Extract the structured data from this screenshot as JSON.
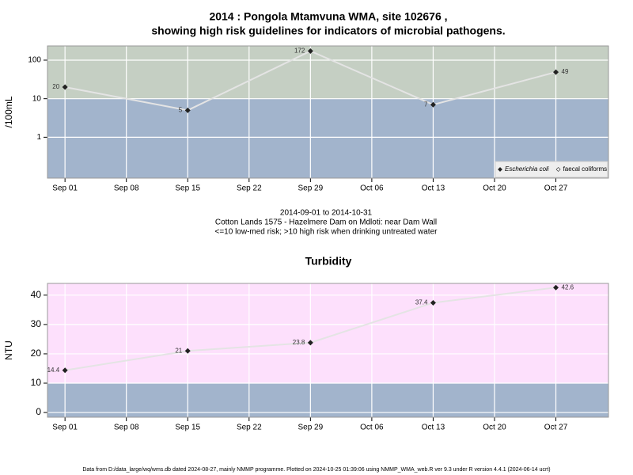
{
  "chart_data": [
    {
      "type": "line",
      "title": [
        "2014 : Pongola Mtamvuna WMA, site 102676 ,",
        "showing high risk guidelines for indicators of microbial pathogens."
      ],
      "y_label": "/100mL",
      "x": [
        "Sep 01",
        "Sep 15",
        "Sep 29",
        "Oct 13",
        "Oct 27"
      ],
      "series": [
        {
          "name": "Escherichia coli",
          "color": "#222222",
          "values": [
            20,
            5,
            172,
            7,
            49
          ]
        },
        {
          "name": "faecal coliforms",
          "color": "#222222",
          "values": [
            null,
            null,
            null,
            null,
            null
          ]
        }
      ],
      "xlim": [
        "Aug 30",
        "Nov 02"
      ],
      "xticks": [
        "Sep 01",
        "Sep 08",
        "Sep 15",
        "Sep 22",
        "Sep 29",
        "Oct 06",
        "Oct 13",
        "Oct 20",
        "Oct 27"
      ],
      "ylim": [
        0.087,
        234
      ],
      "yticks": [
        1,
        10,
        100
      ],
      "log_scale": true,
      "grid": true,
      "threshold": 10,
      "band_colors": {
        "below": "#a2b4cc",
        "above": "#c5cfc3"
      },
      "line_color": "#e4e4e4",
      "legend": "bottom right",
      "notes": [
        "2014-09-01 to 2014-10-31",
        "Cotton Lands 1575 - Hazelmere Dam on Mdloti: near Dam Wall",
        "<=10 low-med risk; >10 high risk when drinking untreated water"
      ]
    },
    {
      "type": "line",
      "title": [
        "Turbidity"
      ],
      "y_label": "NTU",
      "x": [
        "Sep 01",
        "Sep 15",
        "Sep 29",
        "Oct 13",
        "Oct 27"
      ],
      "series": [
        {
          "color": "#222222",
          "values": [
            14.4,
            21,
            23.8,
            37.4,
            42.6
          ]
        }
      ],
      "xlim": [
        "Aug 30",
        "Nov 02"
      ],
      "xticks": [
        "Sep 01",
        "Sep 08",
        "Sep 15",
        "Sep 22",
        "Sep 29",
        "Oct 06",
        "Oct 13",
        "Oct 20",
        "Oct 27"
      ],
      "ylim": [
        -1.6,
        44
      ],
      "yticks": [
        0,
        10,
        20,
        30,
        40
      ],
      "log_scale": false,
      "grid": true,
      "threshold": 10,
      "band_colors": {
        "below": "#a2b4cc",
        "above": "#fde0fc"
      },
      "line_color": "#e4e4e4"
    }
  ],
  "footer": "Data from D:/data_large/wq/wms.db dated 2024-08-27, mainly NMMP programme. Plotted on 2024-10-25 01:39:06 using NMMP_WMA_web.R ver 9.3 under R version 4.4.1 (2024-06-14 ucrt)"
}
